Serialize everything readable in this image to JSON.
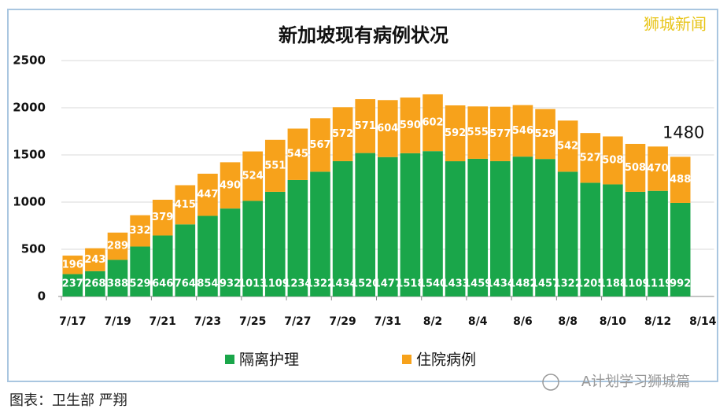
{
  "chart_data": {
    "type": "stacked_bar",
    "title": "新加坡现有病例状况",
    "categories": [
      "7/17",
      null,
      "7/19",
      null,
      "7/21",
      null,
      "7/23",
      null,
      "7/25",
      null,
      "7/27",
      null,
      "7/29",
      null,
      "7/31",
      null,
      "8/2",
      null,
      "8/4",
      null,
      "8/6",
      null,
      "8/8",
      null,
      "8/10",
      null,
      "8/12",
      null
    ],
    "xtick_labels": [
      "7/17",
      "7/19",
      "7/21",
      "7/23",
      "7/25",
      "7/27",
      "7/29",
      "7/31",
      "8/2",
      "8/4",
      "8/6",
      "8/8",
      "8/10",
      "8/12",
      "8/14"
    ],
    "series": [
      {
        "name": "隔离护理",
        "color": "#1aa64a",
        "values": [
          237,
          268,
          388,
          529,
          646,
          764,
          854,
          932,
          1013,
          1109,
          1234,
          1322,
          1434,
          1520,
          1477,
          1518,
          1540,
          1433,
          1459,
          1434,
          1482,
          1457,
          1322,
          1205,
          1188,
          1109,
          1119,
          992
        ]
      },
      {
        "name": "住院病例",
        "color": "#f7a21b",
        "values": [
          196,
          243,
          289,
          332,
          379,
          415,
          447,
          490,
          524,
          551,
          545,
          567,
          572,
          571,
          604,
          590,
          602,
          592,
          555,
          577,
          546,
          529,
          542,
          527,
          508,
          508,
          470,
          488
        ]
      }
    ],
    "ylim": [
      0,
      2500
    ],
    "yticks": [
      0,
      500,
      1000,
      1500,
      2000,
      2500
    ],
    "grid": true,
    "annotation": "1480",
    "watermark": "狮城新闻",
    "footer_left": "图表：卫生部 严翔",
    "footer_right": "A计划学习狮城篇"
  }
}
